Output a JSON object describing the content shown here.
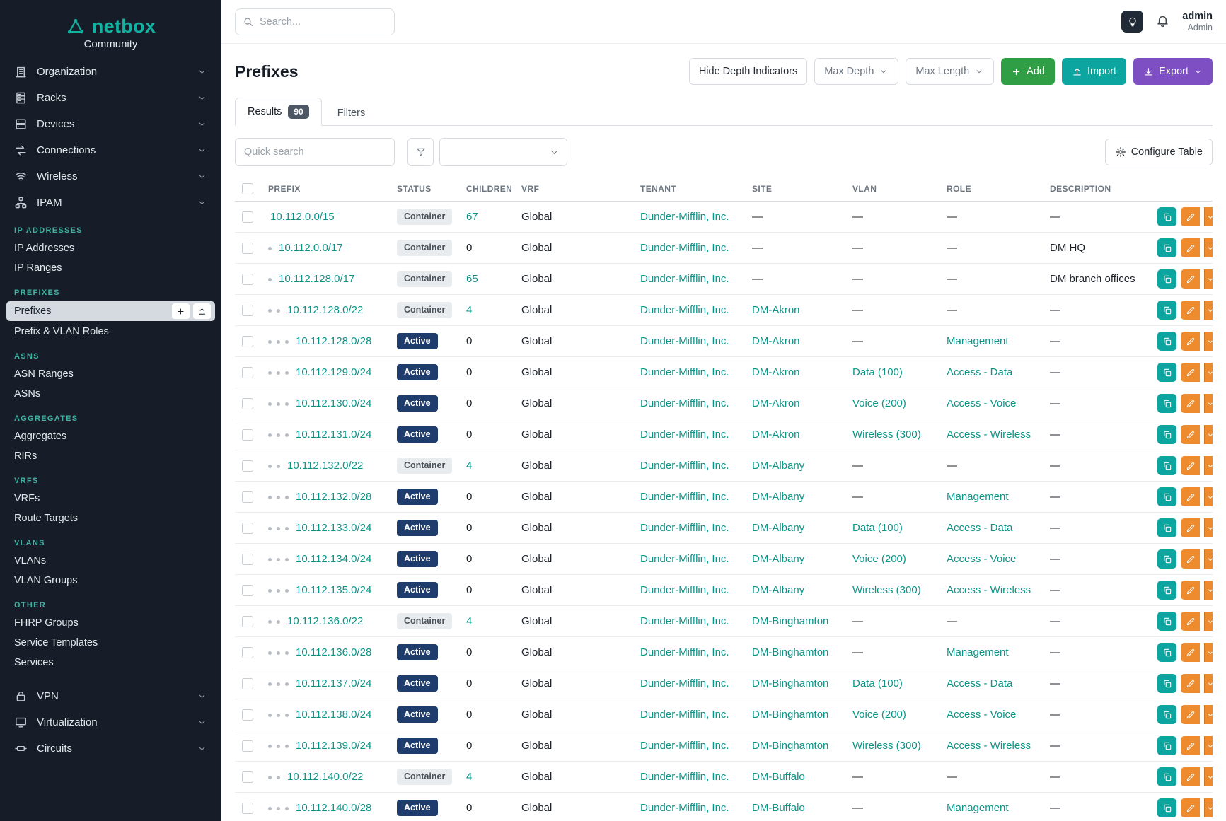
{
  "brand": {
    "name": "netbox",
    "subtitle": "Community"
  },
  "topbar": {
    "search_placeholder": "Search...",
    "user": {
      "name": "admin",
      "role": "Admin"
    }
  },
  "sidebar": {
    "top_items": [
      {
        "label": "Organization",
        "icon": "building"
      },
      {
        "label": "Racks",
        "icon": "rack"
      },
      {
        "label": "Devices",
        "icon": "server"
      },
      {
        "label": "Connections",
        "icon": "cable"
      },
      {
        "label": "Wireless",
        "icon": "wifi"
      },
      {
        "label": "IPAM",
        "icon": "network"
      }
    ],
    "groups": [
      {
        "header": "IP ADDRESSES",
        "items": [
          {
            "label": "IP Addresses"
          },
          {
            "label": "IP Ranges"
          }
        ]
      },
      {
        "header": "PREFIXES",
        "items": [
          {
            "label": "Prefixes",
            "selected": true
          },
          {
            "label": "Prefix & VLAN Roles"
          }
        ]
      },
      {
        "header": "ASNS",
        "items": [
          {
            "label": "ASN Ranges"
          },
          {
            "label": "ASNs"
          }
        ]
      },
      {
        "header": "AGGREGATES",
        "items": [
          {
            "label": "Aggregates"
          },
          {
            "label": "RIRs"
          }
        ]
      },
      {
        "header": "VRFS",
        "items": [
          {
            "label": "VRFs"
          },
          {
            "label": "Route Targets"
          }
        ]
      },
      {
        "header": "VLANS",
        "items": [
          {
            "label": "VLANs"
          },
          {
            "label": "VLAN Groups"
          }
        ]
      },
      {
        "header": "OTHER",
        "items": [
          {
            "label": "FHRP Groups"
          },
          {
            "label": "Service Templates"
          },
          {
            "label": "Services"
          }
        ]
      }
    ],
    "bottom_items": [
      {
        "label": "VPN",
        "icon": "lock"
      },
      {
        "label": "Virtualization",
        "icon": "monitor"
      },
      {
        "label": "Circuits",
        "icon": "circuit"
      }
    ]
  },
  "page": {
    "title": "Prefixes",
    "actions": {
      "hide_depth": "Hide Depth Indicators",
      "max_depth": "Max Depth",
      "max_length": "Max Length",
      "add": "Add",
      "import": "Import",
      "export": "Export"
    },
    "tabs": [
      {
        "label": "Results",
        "badge": "90",
        "active": true
      },
      {
        "label": "Filters",
        "active": false
      }
    ],
    "toolbar": {
      "quick_search_placeholder": "Quick search",
      "configure_table": "Configure Table"
    }
  },
  "table": {
    "columns": [
      "PREFIX",
      "STATUS",
      "CHILDREN",
      "VRF",
      "TENANT",
      "SITE",
      "VLAN",
      "ROLE",
      "DESCRIPTION"
    ],
    "rows": [
      {
        "depth": 0,
        "prefix": "10.112.0.0/15",
        "status": "Container",
        "children": "67",
        "vrf": "Global",
        "tenant": "Dunder-Mifflin, Inc.",
        "site": "—",
        "vlan": "—",
        "role": "—",
        "description": "—"
      },
      {
        "depth": 1,
        "prefix": "10.112.0.0/17",
        "status": "Container",
        "children": "0",
        "vrf": "Global",
        "tenant": "Dunder-Mifflin, Inc.",
        "site": "—",
        "vlan": "—",
        "role": "—",
        "description": "DM HQ"
      },
      {
        "depth": 1,
        "prefix": "10.112.128.0/17",
        "status": "Container",
        "children": "65",
        "vrf": "Global",
        "tenant": "Dunder-Mifflin, Inc.",
        "site": "—",
        "vlan": "—",
        "role": "—",
        "description": "DM branch offices"
      },
      {
        "depth": 2,
        "prefix": "10.112.128.0/22",
        "status": "Container",
        "children": "4",
        "vrf": "Global",
        "tenant": "Dunder-Mifflin, Inc.",
        "site": "DM-Akron",
        "vlan": "—",
        "role": "—",
        "description": "—"
      },
      {
        "depth": 3,
        "prefix": "10.112.128.0/28",
        "status": "Active",
        "children": "0",
        "vrf": "Global",
        "tenant": "Dunder-Mifflin, Inc.",
        "site": "DM-Akron",
        "vlan": "—",
        "role": "Management",
        "description": "—"
      },
      {
        "depth": 3,
        "prefix": "10.112.129.0/24",
        "status": "Active",
        "children": "0",
        "vrf": "Global",
        "tenant": "Dunder-Mifflin, Inc.",
        "site": "DM-Akron",
        "vlan": "Data (100)",
        "role": "Access - Data",
        "description": "—"
      },
      {
        "depth": 3,
        "prefix": "10.112.130.0/24",
        "status": "Active",
        "children": "0",
        "vrf": "Global",
        "tenant": "Dunder-Mifflin, Inc.",
        "site": "DM-Akron",
        "vlan": "Voice (200)",
        "role": "Access - Voice",
        "description": "—"
      },
      {
        "depth": 3,
        "prefix": "10.112.131.0/24",
        "status": "Active",
        "children": "0",
        "vrf": "Global",
        "tenant": "Dunder-Mifflin, Inc.",
        "site": "DM-Akron",
        "vlan": "Wireless (300)",
        "role": "Access - Wireless",
        "description": "—"
      },
      {
        "depth": 2,
        "prefix": "10.112.132.0/22",
        "status": "Container",
        "children": "4",
        "vrf": "Global",
        "tenant": "Dunder-Mifflin, Inc.",
        "site": "DM-Albany",
        "vlan": "—",
        "role": "—",
        "description": "—"
      },
      {
        "depth": 3,
        "prefix": "10.112.132.0/28",
        "status": "Active",
        "children": "0",
        "vrf": "Global",
        "tenant": "Dunder-Mifflin, Inc.",
        "site": "DM-Albany",
        "vlan": "—",
        "role": "Management",
        "description": "—"
      },
      {
        "depth": 3,
        "prefix": "10.112.133.0/24",
        "status": "Active",
        "children": "0",
        "vrf": "Global",
        "tenant": "Dunder-Mifflin, Inc.",
        "site": "DM-Albany",
        "vlan": "Data (100)",
        "role": "Access - Data",
        "description": "—"
      },
      {
        "depth": 3,
        "prefix": "10.112.134.0/24",
        "status": "Active",
        "children": "0",
        "vrf": "Global",
        "tenant": "Dunder-Mifflin, Inc.",
        "site": "DM-Albany",
        "vlan": "Voice (200)",
        "role": "Access - Voice",
        "description": "—"
      },
      {
        "depth": 3,
        "prefix": "10.112.135.0/24",
        "status": "Active",
        "children": "0",
        "vrf": "Global",
        "tenant": "Dunder-Mifflin, Inc.",
        "site": "DM-Albany",
        "vlan": "Wireless (300)",
        "role": "Access - Wireless",
        "description": "—"
      },
      {
        "depth": 2,
        "prefix": "10.112.136.0/22",
        "status": "Container",
        "children": "4",
        "vrf": "Global",
        "tenant": "Dunder-Mifflin, Inc.",
        "site": "DM-Binghamton",
        "vlan": "—",
        "role": "—",
        "description": "—"
      },
      {
        "depth": 3,
        "prefix": "10.112.136.0/28",
        "status": "Active",
        "children": "0",
        "vrf": "Global",
        "tenant": "Dunder-Mifflin, Inc.",
        "site": "DM-Binghamton",
        "vlan": "—",
        "role": "Management",
        "description": "—"
      },
      {
        "depth": 3,
        "prefix": "10.112.137.0/24",
        "status": "Active",
        "children": "0",
        "vrf": "Global",
        "tenant": "Dunder-Mifflin, Inc.",
        "site": "DM-Binghamton",
        "vlan": "Data (100)",
        "role": "Access - Data",
        "description": "—"
      },
      {
        "depth": 3,
        "prefix": "10.112.138.0/24",
        "status": "Active",
        "children": "0",
        "vrf": "Global",
        "tenant": "Dunder-Mifflin, Inc.",
        "site": "DM-Binghamton",
        "vlan": "Voice (200)",
        "role": "Access - Voice",
        "description": "—"
      },
      {
        "depth": 3,
        "prefix": "10.112.139.0/24",
        "status": "Active",
        "children": "0",
        "vrf": "Global",
        "tenant": "Dunder-Mifflin, Inc.",
        "site": "DM-Binghamton",
        "vlan": "Wireless (300)",
        "role": "Access - Wireless",
        "description": "—"
      },
      {
        "depth": 2,
        "prefix": "10.112.140.0/22",
        "status": "Container",
        "children": "4",
        "vrf": "Global",
        "tenant": "Dunder-Mifflin, Inc.",
        "site": "DM-Buffalo",
        "vlan": "—",
        "role": "—",
        "description": "—"
      },
      {
        "depth": 3,
        "prefix": "10.112.140.0/28",
        "status": "Active",
        "children": "0",
        "vrf": "Global",
        "tenant": "Dunder-Mifflin, Inc.",
        "site": "DM-Buffalo",
        "vlan": "—",
        "role": "Management",
        "description": "—"
      }
    ]
  },
  "colors": {
    "sidebar-bg": "#161d28",
    "brand": "#12b2a3",
    "section": "#41b1a2",
    "link": "#0d9488",
    "green": "#2f9e44",
    "teal-btn": "#0ca5a0",
    "purple": "#7d4fc3",
    "orange": "#ee8b2e",
    "active": "#1e3d6d"
  }
}
